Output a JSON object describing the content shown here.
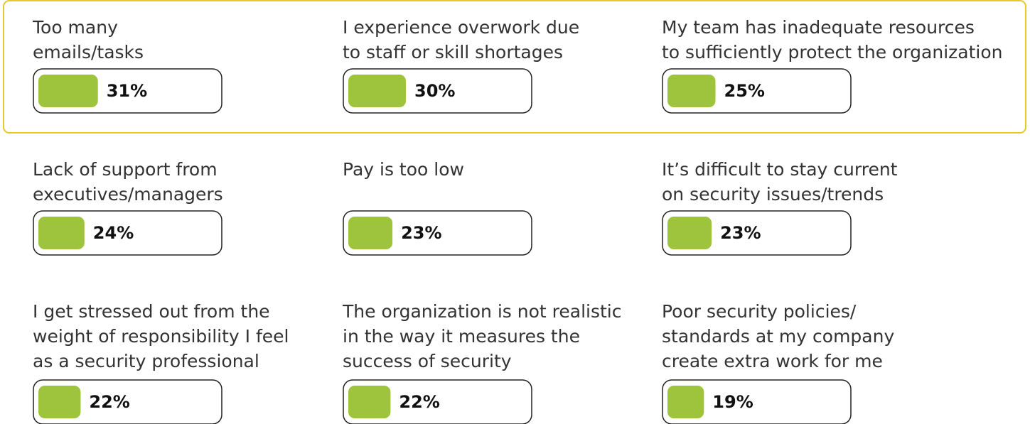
{
  "chart_data": {
    "type": "bar",
    "categories": [
      [
        "Too many",
        "emails/tasks"
      ],
      [
        "I experience overwork due",
        "to staff or skill shortages"
      ],
      [
        "My team has inadequate resources",
        "to sufficiently protect the organization"
      ],
      [
        "Lack of support from",
        "executives/managers"
      ],
      [
        "Pay is too low"
      ],
      [
        "It’s difficult to stay current",
        "on security issues/trends"
      ],
      [
        "I get stressed out from the",
        "weight of responsibility I feel",
        "as a security professional"
      ],
      [
        "The organization is not realistic",
        "in the way it measures the",
        "success of security"
      ],
      [
        "Poor security policies/",
        "standards at my company",
        "create extra work for me"
      ]
    ],
    "values": [
      31,
      30,
      25,
      24,
      23,
      23,
      22,
      22,
      19
    ],
    "value_labels": [
      "31%",
      "30%",
      "25%",
      "24%",
      "23%",
      "23%",
      "22%",
      "22%",
      "19%"
    ],
    "xlim": [
      0,
      100
    ],
    "color": "#9dc43c"
  }
}
